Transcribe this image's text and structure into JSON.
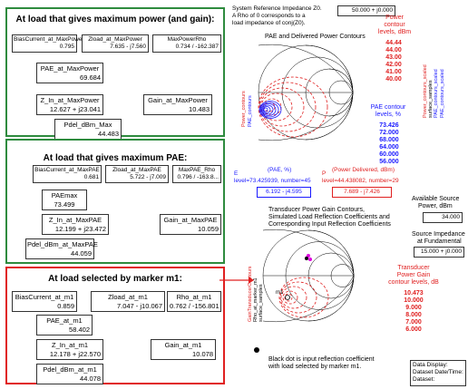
{
  "colors": {
    "green": "#2e8b3e",
    "red": "#e02020",
    "blue": "#1a1aff",
    "magenta": "#e000e0"
  },
  "panel1": {
    "title": "At load that gives maximum power (and gain):",
    "fields": [
      {
        "label": "BiasCurrent_at_MaxPower",
        "value": "0.795"
      },
      {
        "label": "Zload_at_MaxPower",
        "value": "7.635 - j7.560"
      },
      {
        "label": "MaxPowerRho",
        "value": "0.734 / -162.387"
      },
      {
        "label": "PAE_at_MaxPower",
        "value": "69.684"
      },
      {
        "label": "Z_In_at_MaxPower",
        "value": "12.627 + j23.041"
      },
      {
        "label": "Gain_at_MaxPower",
        "value": "10.483"
      },
      {
        "label": "Pdel_dBm_Max",
        "value": "44.483"
      }
    ]
  },
  "panel2": {
    "title": "At load that gives maximum PAE:",
    "fields": [
      {
        "label": "BiasCurrent_at_MaxPAE",
        "value": "0.681"
      },
      {
        "label": "Zload_at_MaxPAE",
        "value": "5.722 - j7.009"
      },
      {
        "label": "MaxPAE_Rho",
        "value": "0.796 / -163.8..."
      },
      {
        "label": "PAEmax",
        "value": "73.499"
      },
      {
        "label": "Z_In_at_MaxPAE",
        "value": "12.199 + j23.472"
      },
      {
        "label": "Gain_at_MaxPAE",
        "value": "10.059"
      },
      {
        "label": "Pdel_dBm_at_MaxPAE",
        "value": "44.059"
      }
    ]
  },
  "panel3": {
    "title": "At load selected by marker m1:",
    "fields": [
      {
        "label": "BiasCurrent_at_m1",
        "value": "0.859"
      },
      {
        "label": "Zload_at_m1",
        "value": "7.047 - j10.067"
      },
      {
        "label": "Rho_at_m1",
        "value": "0.762 / -156.801"
      },
      {
        "label": "PAE_at_m1",
        "value": "58.402"
      },
      {
        "label": "Z_In_at_m1",
        "value": "12.178 + j22.570"
      },
      {
        "label": "Gain_at_m1",
        "value": "10.078"
      },
      {
        "label": "Pdel_dBm_at_m1",
        "value": "44.078"
      }
    ]
  },
  "header": {
    "ref_text_1": "System Reference Impedance Z0.",
    "ref_text_2": "A Rho of 0 corresponds to a",
    "ref_text_3": "load impedance of conj(Z0).",
    "z0_value": "50.000 + j0.000"
  },
  "chart1": {
    "title": "PAE and Delivered Power Contours",
    "power_legend_title": [
      "Power",
      "contour",
      "levels, dBm"
    ],
    "power_levels": [
      "44.44",
      "44.00",
      "43.00",
      "42.00",
      "41.00",
      "40.00"
    ],
    "pae_legend_title": [
      "PAE contour",
      "levels, %"
    ],
    "pae_levels": [
      "73.426",
      "72.000",
      "68.000",
      "64.000",
      "60.000",
      "56.000"
    ],
    "left_vertical_labels": [
      "Power_contours",
      "PAE_contours"
    ],
    "right_vertical_labels": [
      "Power_contours_scaled",
      "surface_samples",
      "PAE_contours_scaled",
      "PAE_contours_scaled"
    ],
    "pae_marker_header": [
      "(PAE, %)"
    ],
    "pae_marker_line": "level=73.425939, number=45",
    "pae_marker_prefix": "E",
    "pae_marker_value": "6.192 - j4.595",
    "power_marker_header": "(Power Delivered, dBm)",
    "power_marker_line": "level=44.438082, number=29",
    "power_marker_prefix": "P",
    "power_marker_value": "7.689 - j7.426"
  },
  "source": {
    "avail_label_1": "Available Source",
    "avail_label_2": "Power, dBm",
    "avail_value": "34.000",
    "imp_label_1": "Source Impedance",
    "imp_label_2": "at Fundamental",
    "imp_value": "15.000 + j0.000"
  },
  "chart2": {
    "title_1": "Transducer Power Gain Contours,",
    "title_2": "Simulated Load Reflection Coefficients and",
    "title_3": "Corresponding Input Reflection Coefficients",
    "legend_title": [
      "Transducer",
      "Power Gain",
      "contour levels, dB"
    ],
    "levels": [
      "10.473",
      "10.000",
      "9.000",
      "8.000",
      "7.000",
      "6.000"
    ],
    "left_vertical_labels": [
      "GainTransducerContours",
      "Rho_at_marker_m1",
      "surface_samples"
    ],
    "marker_label": "m1",
    "note_1": "Black dot is input reflection coefficient",
    "note_2": "with load selected by marker m1."
  },
  "footer": {
    "line1": "Data Display:",
    "line2": "Dataset Date/Time:",
    "line3": "Dataset:"
  }
}
